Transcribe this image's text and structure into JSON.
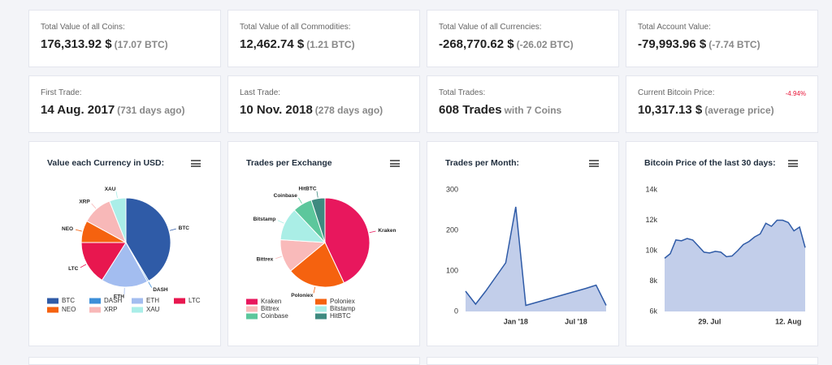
{
  "stats": [
    {
      "label": "Total Value of all Coins:",
      "value": "176,313.92 $",
      "detail": "(17.07 BTC)"
    },
    {
      "label": "Total Value of all Commodities:",
      "value": "12,462.74 $",
      "detail": "(1.21 BTC)"
    },
    {
      "label": "Total Value of all Currencies:",
      "value": "-268,770.62 $",
      "detail": "(-26.02 BTC)"
    },
    {
      "label": "Total Account Value:",
      "value": "-79,993.96 $",
      "detail": "(-7.74 BTC)"
    },
    {
      "label": "First Trade:",
      "value": "14 Aug. 2017",
      "detail": "(731 days ago)"
    },
    {
      "label": "Last Trade:",
      "value": "10 Nov. 2018",
      "detail": "(278 days ago)"
    },
    {
      "label": "Total Trades:",
      "value": "608 Trades",
      "detail": "with 7 Coins"
    },
    {
      "label": "Current Bitcoin Price:",
      "value": "10,317.13 $",
      "detail": "(average price)",
      "change": "-4.94%"
    }
  ],
  "chart_data": [
    {
      "type": "pie",
      "title": "Value each Currency in USD:",
      "categories": [
        "BTC",
        "DASH",
        "ETH",
        "LTC",
        "NEO",
        "XRP",
        "XAU"
      ],
      "values": [
        41.5,
        0.5,
        17,
        16,
        8,
        11,
        6
      ],
      "colors": [
        "#2f5ba7",
        "#3d8fd8",
        "#a3bdf0",
        "#e8174f",
        "#f5620f",
        "#f8b8b8",
        "#aaeee8"
      ]
    },
    {
      "type": "pie",
      "title": "Trades per Exchange",
      "categories": [
        "Kraken",
        "Poloniex",
        "Bittrex",
        "Bitstamp",
        "Coinbase",
        "HitBTC"
      ],
      "values": [
        43,
        21,
        12,
        12,
        7,
        5
      ],
      "colors": [
        "#e8175d",
        "#f5620f",
        "#f9baba",
        "#aaeee6",
        "#5cc79c",
        "#3e8a80"
      ]
    },
    {
      "type": "area",
      "title": "Trades per Month:",
      "categories": [
        null,
        null,
        null,
        null,
        null,
        "Jan '18",
        null,
        null,
        null,
        null,
        null,
        "Jul '18",
        null,
        null,
        null
      ],
      "values": [
        50,
        18,
        50,
        85,
        120,
        258,
        15,
        22,
        29,
        36,
        43,
        50,
        57,
        65,
        15
      ],
      "color": "#2f5ba7",
      "ylim": [
        0,
        300
      ],
      "yticks": [
        0,
        100,
        200,
        300
      ]
    },
    {
      "type": "area",
      "title": "Bitcoin Price of the last 30 days:",
      "categories": [
        null,
        null,
        null,
        null,
        null,
        null,
        null,
        null,
        "29. Jul",
        null,
        null,
        null,
        null,
        null,
        null,
        null,
        null,
        null,
        null,
        null,
        null,
        null,
        "12. Aug",
        null,
        null,
        null
      ],
      "values": [
        9500,
        9800,
        10700,
        10650,
        10800,
        10700,
        10300,
        9900,
        9850,
        9950,
        9900,
        9600,
        9650,
        10000,
        10400,
        10600,
        10900,
        11100,
        11800,
        11600,
        12000,
        12000,
        11850,
        11300,
        11550,
        10200
      ],
      "color": "#2f5ba7",
      "ylim": [
        6000,
        14000
      ],
      "yticks": [
        {
          "value": 6000,
          "label": "6k"
        },
        {
          "value": 8000,
          "label": "8k"
        },
        {
          "value": 10000,
          "label": "10k"
        },
        {
          "value": 12000,
          "label": "12k"
        },
        {
          "value": 14000,
          "label": "14k"
        }
      ]
    }
  ]
}
